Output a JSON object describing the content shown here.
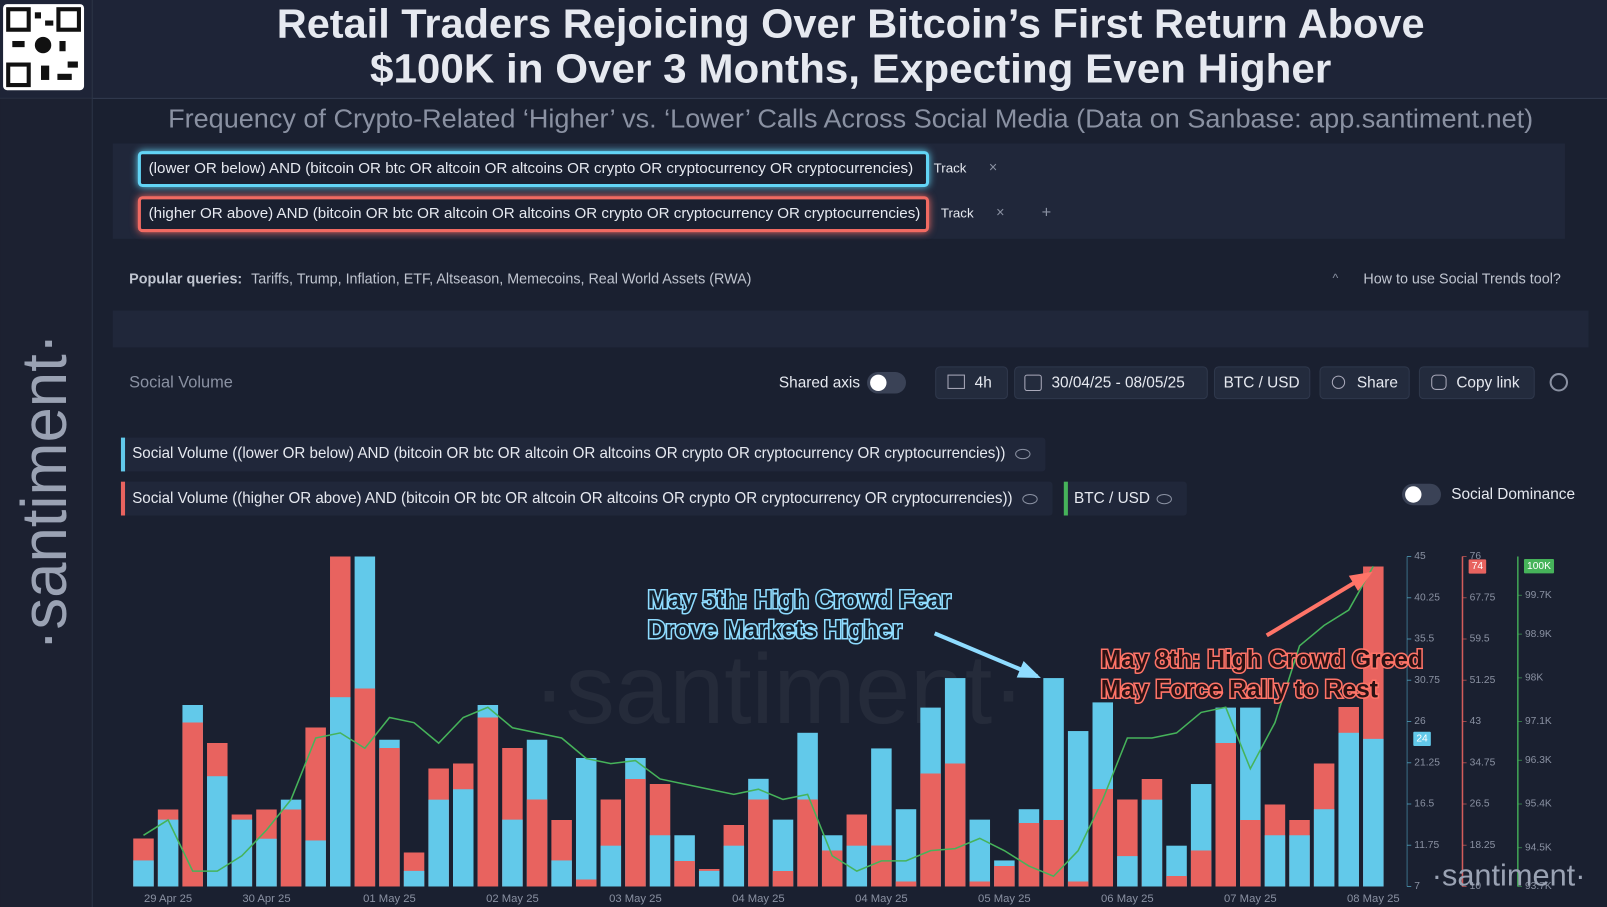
{
  "header": {
    "title_lines": [
      "Retail Traders Rejoicing Over Bitcoin’s First Return Above",
      "$100K in Over 3 Months, Expecting Even Higher"
    ],
    "subtitle": "Frequency of Crypto-Related ‘Higher’ vs. ‘Lower’ Calls Across Social Media (Data on Sanbase: app.santiment.net)"
  },
  "brand": "·santiment·",
  "queries": [
    {
      "text": "(lower OR below) AND (bitcoin OR btc OR altcoin OR altcoins OR crypto OR cryptocurrency OR cryptocurrencies)",
      "button": "Track"
    },
    {
      "text": "(higher OR above) AND (bitcoin OR btc OR altcoin OR altcoins OR crypto OR cryptocurrency OR cryptocurrencies)",
      "button": "Track"
    }
  ],
  "popular": {
    "label": "Popular queries:",
    "items": "Tariffs, Trump, Inflation, ETF, Altseason, Memecoins, Real World Assets (RWA)",
    "help": "How to use Social Trends tool?"
  },
  "toolbar": {
    "title": "Social Volume",
    "shared_axis": "Shared axis",
    "interval": "4h",
    "dates": "30/04/25 - 08/05/25",
    "pair": "BTC / USD",
    "share": "Share",
    "copy": "Copy link"
  },
  "social_dominance": "Social Dominance",
  "chart_data": {
    "type": "bar",
    "categories": [
      null,
      "29 Apr 25",
      null,
      null,
      null,
      "30 Apr 25",
      null,
      null,
      null,
      null,
      "01 May 25",
      null,
      null,
      null,
      null,
      "02 May 25",
      null,
      null,
      null,
      null,
      "03 May 25",
      null,
      null,
      null,
      null,
      "04 May 25",
      null,
      null,
      null,
      null,
      "04 May 25",
      null,
      null,
      null,
      null,
      "05 May 25",
      null,
      null,
      null,
      null,
      "06 May 25",
      null,
      null,
      null,
      null,
      "07 May 25",
      null,
      null,
      null,
      null,
      "08 May 25"
    ],
    "series": [
      {
        "name": "Social Volume ((lower OR below) AND (bitcoin OR btc OR altcoin OR altcoins OR crypto OR cryptocurrency OR cryptocurrencies))",
        "color": "#62c9ea",
        "axis": "y",
        "values": [
          10,
          14.7,
          27.9,
          19.7,
          14.7,
          12.5,
          17,
          12.3,
          28.8,
          45,
          23.9,
          8.8,
          17,
          18.2,
          27.9,
          14.7,
          23.9,
          10,
          21.8,
          11.7,
          21.8,
          12.9,
          12.9,
          8.8,
          11.7,
          19.4,
          14.7,
          24.7,
          12.9,
          11.7,
          22.9,
          15.9,
          27.6,
          31,
          14.7,
          10,
          15.9,
          31,
          24.9,
          28.2,
          10.5,
          17,
          11.7,
          18.8,
          27.6,
          27.6,
          12.9,
          12.9,
          15.9,
          24.7,
          24
        ]
      },
      {
        "name": "Social Volume ((higher OR above) AND (bitcoin OR btc OR altcoin OR altcoins OR crypto OR cryptocurrency OR cryptocurrencies))",
        "color": "#e8635f",
        "axis": "y2",
        "values": [
          19.6,
          25.4,
          42.8,
          38.7,
          24.4,
          25.4,
          25.4,
          41.8,
          76,
          49.6,
          37.7,
          16.8,
          33.6,
          34.6,
          43.8,
          37.7,
          27.4,
          23.3,
          11.4,
          27.4,
          31.5,
          30.5,
          15.1,
          13.5,
          22.3,
          27.4,
          13.1,
          27.4,
          17.2,
          24.4,
          18.2,
          11,
          32.6,
          34.6,
          11,
          14.1,
          22.7,
          23.3,
          11,
          29.5,
          27.4,
          31.5,
          12.1,
          17.2,
          38.7,
          23.3,
          26.4,
          23.3,
          34.6,
          45.9,
          74
        ]
      },
      {
        "name": "BTC / USD",
        "type": "line",
        "color": "#46b35a",
        "axis": "y3",
        "values": [
          94755,
          95072,
          94017,
          94017,
          94333,
          94861,
          95494,
          96760,
          96865,
          96549,
          97182,
          97076,
          96654,
          97182,
          97393,
          96971,
          96865,
          96760,
          96338,
          96232,
          96295,
          95916,
          95810,
          95705,
          95599,
          95705,
          95494,
          95599,
          94333,
          94017,
          94228,
          94228,
          94439,
          94481,
          94692,
          94439,
          94122,
          93911,
          94439,
          95494,
          96760,
          96760,
          96865,
          97287,
          97393,
          96127,
          97076,
          98659,
          99081,
          99397,
          100300
        ],
        "value_labels": [
          null,
          null,
          null,
          null,
          null,
          null,
          null,
          null,
          null,
          null,
          null,
          null,
          null,
          null,
          null,
          null,
          null,
          null,
          null,
          null,
          null,
          null,
          null,
          null,
          null,
          null,
          null,
          null,
          null,
          null,
          null,
          null,
          null,
          null,
          null,
          null,
          null,
          null,
          null,
          null,
          null,
          null,
          null,
          null,
          null,
          null,
          null,
          null,
          null,
          null,
          "100K"
        ]
      }
    ],
    "ylim": [
      7,
      45
    ],
    "yticks": [
      7,
      11.75,
      16.5,
      21.25,
      26,
      30.75,
      35.5,
      40.25,
      45
    ],
    "y2lim": [
      10,
      76
    ],
    "y2ticks": [
      10,
      18.25,
      26.5,
      34.75,
      43,
      51.25,
      59.5,
      67.75,
      76
    ],
    "y3lim": [
      93700,
      100500
    ],
    "y3ticks": [
      {
        "value": 93700,
        "label": "93.7K"
      },
      {
        "value": 94500,
        "label": "94.5K"
      },
      {
        "value": 95400,
        "label": "95.4K"
      },
      {
        "value": 96300,
        "label": "96.3K"
      },
      {
        "value": 97100,
        "label": "97.1K"
      },
      {
        "value": 98000,
        "label": "98K"
      },
      {
        "value": 98900,
        "label": "98.9K"
      },
      {
        "value": 99700,
        "label": "99.7K"
      }
    ],
    "annotations": [
      {
        "lines": [
          "May 5th: High Crowd Fear",
          "Drove Markets Higher"
        ],
        "color": "#8fdcff"
      },
      {
        "lines": [
          "May 8th: High Crowd Greed",
          "May Force Rally to Rest"
        ],
        "color": "#ff7468"
      }
    ]
  }
}
